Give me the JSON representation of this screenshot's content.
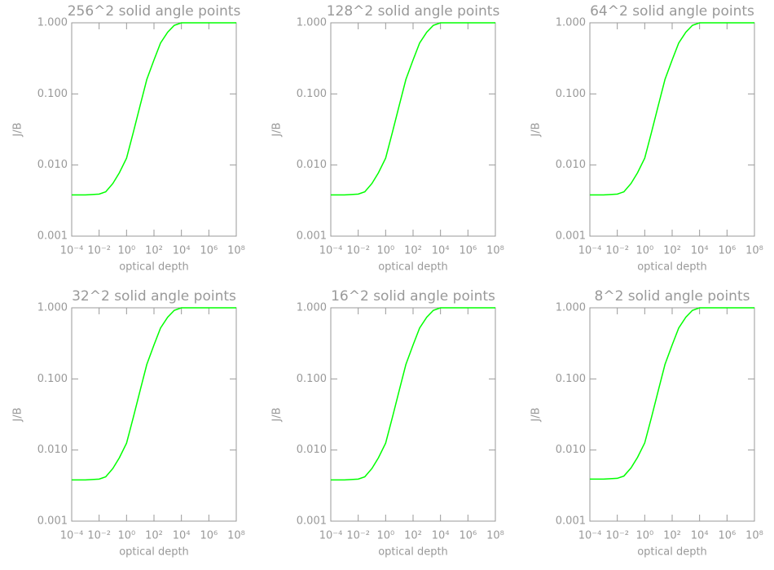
{
  "chart_data": [
    {
      "type": "line",
      "title": "256^2 solid angle points",
      "xlabel": "optical depth",
      "ylabel": "J/B",
      "xscale": "log",
      "yscale": "log",
      "xlim": [
        0.0001,
        100000000
      ],
      "ylim": [
        0.001,
        1
      ],
      "xticks": [
        {
          "value": 0.0001,
          "label": "10⁻⁴"
        },
        {
          "value": 0.01,
          "label": "10⁻²"
        },
        {
          "value": 1,
          "label": "10⁰"
        },
        {
          "value": 100,
          "label": "10²"
        },
        {
          "value": 10000,
          "label": "10⁴"
        },
        {
          "value": 1000000,
          "label": "10⁶"
        },
        {
          "value": 100000000,
          "label": "10⁸"
        }
      ],
      "yticks": [
        0.001,
        {
          "value": 0.01,
          "label": "0.010"
        },
        {
          "value": 0.1,
          "label": "0.100"
        },
        {
          "value": 1,
          "label": "1.000"
        }
      ],
      "x": [
        0.0001,
        0.001,
        0.01,
        0.03,
        0.1,
        0.3,
        1,
        3,
        10,
        30,
        100,
        300,
        1000,
        3000,
        10000,
        100000,
        1000000,
        10000000,
        100000000
      ],
      "series": [
        {
          "color": "#00ff00",
          "values": [
            0.0038,
            0.0038,
            0.0039,
            0.0042,
            0.0055,
            0.0078,
            0.0125,
            0.028,
            0.07,
            0.16,
            0.3,
            0.52,
            0.74,
            0.92,
            1.0,
            1.0,
            1.0,
            1.0,
            1.0
          ]
        }
      ]
    },
    {
      "type": "line",
      "title": "128^2 solid angle points",
      "xlabel": "optical depth",
      "ylabel": "J/B",
      "xscale": "log",
      "yscale": "log",
      "xlim": [
        0.0001,
        100000000
      ],
      "ylim": [
        0.001,
        1
      ],
      "xticks": [
        {
          "value": 0.0001,
          "label": "10⁻⁴"
        },
        {
          "value": 0.01,
          "label": "10⁻²"
        },
        {
          "value": 1,
          "label": "10⁰"
        },
        {
          "value": 100,
          "label": "10²"
        },
        {
          "value": 10000,
          "label": "10⁴"
        },
        {
          "value": 1000000,
          "label": "10⁶"
        },
        {
          "value": 100000000,
          "label": "10⁸"
        }
      ],
      "yticks": [
        0.001,
        {
          "value": 0.01,
          "label": "0.010"
        },
        {
          "value": 0.1,
          "label": "0.100"
        },
        {
          "value": 1,
          "label": "1.000"
        }
      ],
      "x": [
        0.0001,
        0.001,
        0.01,
        0.03,
        0.1,
        0.3,
        1,
        3,
        10,
        30,
        100,
        300,
        1000,
        3000,
        10000,
        100000,
        1000000,
        10000000,
        100000000
      ],
      "series": [
        {
          "color": "#00ff00",
          "values": [
            0.0038,
            0.0038,
            0.0039,
            0.0042,
            0.0055,
            0.0078,
            0.0125,
            0.028,
            0.07,
            0.16,
            0.3,
            0.52,
            0.74,
            0.92,
            1.0,
            1.0,
            1.0,
            1.0,
            1.0
          ]
        }
      ]
    },
    {
      "type": "line",
      "title": "64^2 solid angle points",
      "xlabel": "optical depth",
      "ylabel": "J/B",
      "xscale": "log",
      "yscale": "log",
      "xlim": [
        0.0001,
        100000000
      ],
      "ylim": [
        0.001,
        1
      ],
      "xticks": [
        {
          "value": 0.0001,
          "label": "10⁻⁴"
        },
        {
          "value": 0.01,
          "label": "10⁻²"
        },
        {
          "value": 1,
          "label": "10⁰"
        },
        {
          "value": 100,
          "label": "10²"
        },
        {
          "value": 10000,
          "label": "10⁴"
        },
        {
          "value": 1000000,
          "label": "10⁶"
        },
        {
          "value": 100000000,
          "label": "10⁸"
        }
      ],
      "yticks": [
        0.001,
        {
          "value": 0.01,
          "label": "0.010"
        },
        {
          "value": 0.1,
          "label": "0.100"
        },
        {
          "value": 1,
          "label": "1.000"
        }
      ],
      "x": [
        0.0001,
        0.001,
        0.01,
        0.03,
        0.1,
        0.3,
        1,
        3,
        10,
        30,
        100,
        300,
        1000,
        3000,
        10000,
        100000,
        1000000,
        10000000,
        100000000
      ],
      "series": [
        {
          "color": "#00ff00",
          "values": [
            0.0038,
            0.0038,
            0.0039,
            0.0042,
            0.0055,
            0.0078,
            0.0125,
            0.028,
            0.07,
            0.16,
            0.3,
            0.52,
            0.74,
            0.92,
            1.0,
            1.0,
            1.0,
            1.0,
            1.0
          ]
        }
      ]
    },
    {
      "type": "line",
      "title": "32^2 solid angle points",
      "xlabel": "optical depth",
      "ylabel": "J/B",
      "xscale": "log",
      "yscale": "log",
      "xlim": [
        0.0001,
        100000000
      ],
      "ylim": [
        0.001,
        1
      ],
      "xticks": [
        {
          "value": 0.0001,
          "label": "10⁻⁴"
        },
        {
          "value": 0.01,
          "label": "10⁻²"
        },
        {
          "value": 1,
          "label": "10⁰"
        },
        {
          "value": 100,
          "label": "10²"
        },
        {
          "value": 10000,
          "label": "10⁴"
        },
        {
          "value": 1000000,
          "label": "10⁶"
        },
        {
          "value": 100000000,
          "label": "10⁸"
        }
      ],
      "yticks": [
        0.001,
        {
          "value": 0.01,
          "label": "0.010"
        },
        {
          "value": 0.1,
          "label": "0.100"
        },
        {
          "value": 1,
          "label": "1.000"
        }
      ],
      "x": [
        0.0001,
        0.001,
        0.01,
        0.03,
        0.1,
        0.3,
        1,
        3,
        10,
        30,
        100,
        300,
        1000,
        3000,
        10000,
        100000,
        1000000,
        10000000,
        100000000
      ],
      "series": [
        {
          "color": "#00ff00",
          "values": [
            0.0038,
            0.0038,
            0.0039,
            0.0042,
            0.0055,
            0.0078,
            0.0125,
            0.028,
            0.07,
            0.16,
            0.3,
            0.52,
            0.74,
            0.92,
            1.0,
            1.0,
            1.0,
            1.0,
            1.0
          ]
        }
      ]
    },
    {
      "type": "line",
      "title": "16^2 solid angle points",
      "xlabel": "optical depth",
      "ylabel": "J/B",
      "xscale": "log",
      "yscale": "log",
      "xlim": [
        0.0001,
        100000000
      ],
      "ylim": [
        0.001,
        1
      ],
      "xticks": [
        {
          "value": 0.0001,
          "label": "10⁻⁴"
        },
        {
          "value": 0.01,
          "label": "10⁻²"
        },
        {
          "value": 1,
          "label": "10⁰"
        },
        {
          "value": 100,
          "label": "10²"
        },
        {
          "value": 10000,
          "label": "10⁴"
        },
        {
          "value": 1000000,
          "label": "10⁶"
        },
        {
          "value": 100000000,
          "label": "10⁸"
        }
      ],
      "yticks": [
        0.001,
        {
          "value": 0.01,
          "label": "0.010"
        },
        {
          "value": 0.1,
          "label": "0.100"
        },
        {
          "value": 1,
          "label": "1.000"
        }
      ],
      "x": [
        0.0001,
        0.001,
        0.01,
        0.03,
        0.1,
        0.3,
        1,
        3,
        10,
        30,
        100,
        300,
        1000,
        3000,
        10000,
        100000,
        1000000,
        10000000,
        100000000
      ],
      "series": [
        {
          "color": "#00ff00",
          "values": [
            0.0038,
            0.0038,
            0.0039,
            0.0042,
            0.0055,
            0.0078,
            0.0125,
            0.028,
            0.07,
            0.16,
            0.3,
            0.52,
            0.74,
            0.92,
            1.0,
            1.0,
            1.0,
            1.0,
            1.0
          ]
        }
      ]
    },
    {
      "type": "line",
      "title": "8^2 solid angle points",
      "xlabel": "optical depth",
      "ylabel": "J/B",
      "xscale": "log",
      "yscale": "log",
      "xlim": [
        0.0001,
        100000000
      ],
      "ylim": [
        0.001,
        1
      ],
      "xticks": [
        {
          "value": 0.0001,
          "label": "10⁻⁴"
        },
        {
          "value": 0.01,
          "label": "10⁻²"
        },
        {
          "value": 1,
          "label": "10⁰"
        },
        {
          "value": 100,
          "label": "10²"
        },
        {
          "value": 10000,
          "label": "10⁴"
        },
        {
          "value": 1000000,
          "label": "10⁶"
        },
        {
          "value": 100000000,
          "label": "10⁸"
        }
      ],
      "yticks": [
        0.001,
        {
          "value": 0.01,
          "label": "0.010"
        },
        {
          "value": 0.1,
          "label": "0.100"
        },
        {
          "value": 1,
          "label": "1.000"
        }
      ],
      "x": [
        0.0001,
        0.001,
        0.01,
        0.03,
        0.1,
        0.3,
        1,
        3,
        10,
        30,
        100,
        300,
        1000,
        3000,
        10000,
        100000,
        1000000,
        10000000,
        100000000
      ],
      "series": [
        {
          "color": "#00ff00",
          "values": [
            0.0039,
            0.0039,
            0.004,
            0.0043,
            0.0056,
            0.0079,
            0.0126,
            0.028,
            0.07,
            0.16,
            0.3,
            0.52,
            0.74,
            0.92,
            1.0,
            1.0,
            1.0,
            1.0,
            1.0
          ]
        }
      ]
    }
  ]
}
